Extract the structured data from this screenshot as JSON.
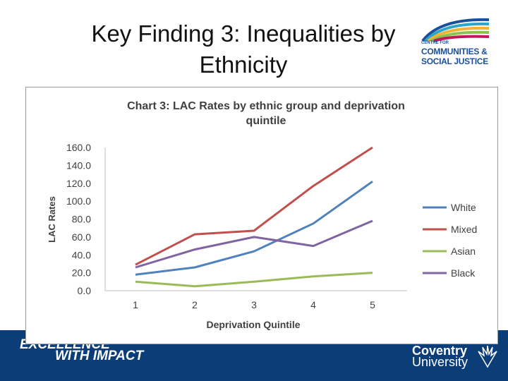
{
  "slide": {
    "title_line1": "Key Finding 3: Inequalities by",
    "title_line2": "Ethnicity"
  },
  "logo": {
    "small": "CENTRE FOR",
    "line1": "COMMUNITIES &",
    "line2": "SOCIAL JUSTICE"
  },
  "footer": {
    "left_line1": "EXCELLENCE",
    "left_line2": "WITH IMPACT",
    "university_line1": "Coventry",
    "university_line2": "University"
  },
  "colors": {
    "footer_band": "#0b3d78",
    "White": "#4f81bd",
    "Mixed": "#c0504d",
    "Asian": "#9bbb59",
    "Black": "#8064a2"
  },
  "chart_data": {
    "type": "line",
    "title_line1": "Chart 3: LAC Rates by ethnic group and deprivation",
    "title_line2": "quintile",
    "xlabel": "Deprivation Quintile",
    "ylabel": "LAC Rates",
    "categories": [
      "1",
      "2",
      "3",
      "4",
      "5"
    ],
    "ylim": [
      0,
      160
    ],
    "yticks": [
      "0.0",
      "20.0",
      "40.0",
      "60.0",
      "80.0",
      "100.0",
      "120.0",
      "140.0",
      "160.0"
    ],
    "grid": false,
    "legend_position": "right",
    "series": [
      {
        "name": "White",
        "color": "#4f81bd",
        "values": [
          18,
          26,
          44,
          75,
          122
        ]
      },
      {
        "name": "Mixed",
        "color": "#c0504d",
        "values": [
          29,
          63,
          67,
          117,
          160
        ]
      },
      {
        "name": "Asian",
        "color": "#9bbb59",
        "values": [
          10,
          5,
          10,
          16,
          20
        ]
      },
      {
        "name": "Black",
        "color": "#8064a2",
        "values": [
          26,
          46,
          60,
          50,
          78
        ]
      }
    ]
  }
}
